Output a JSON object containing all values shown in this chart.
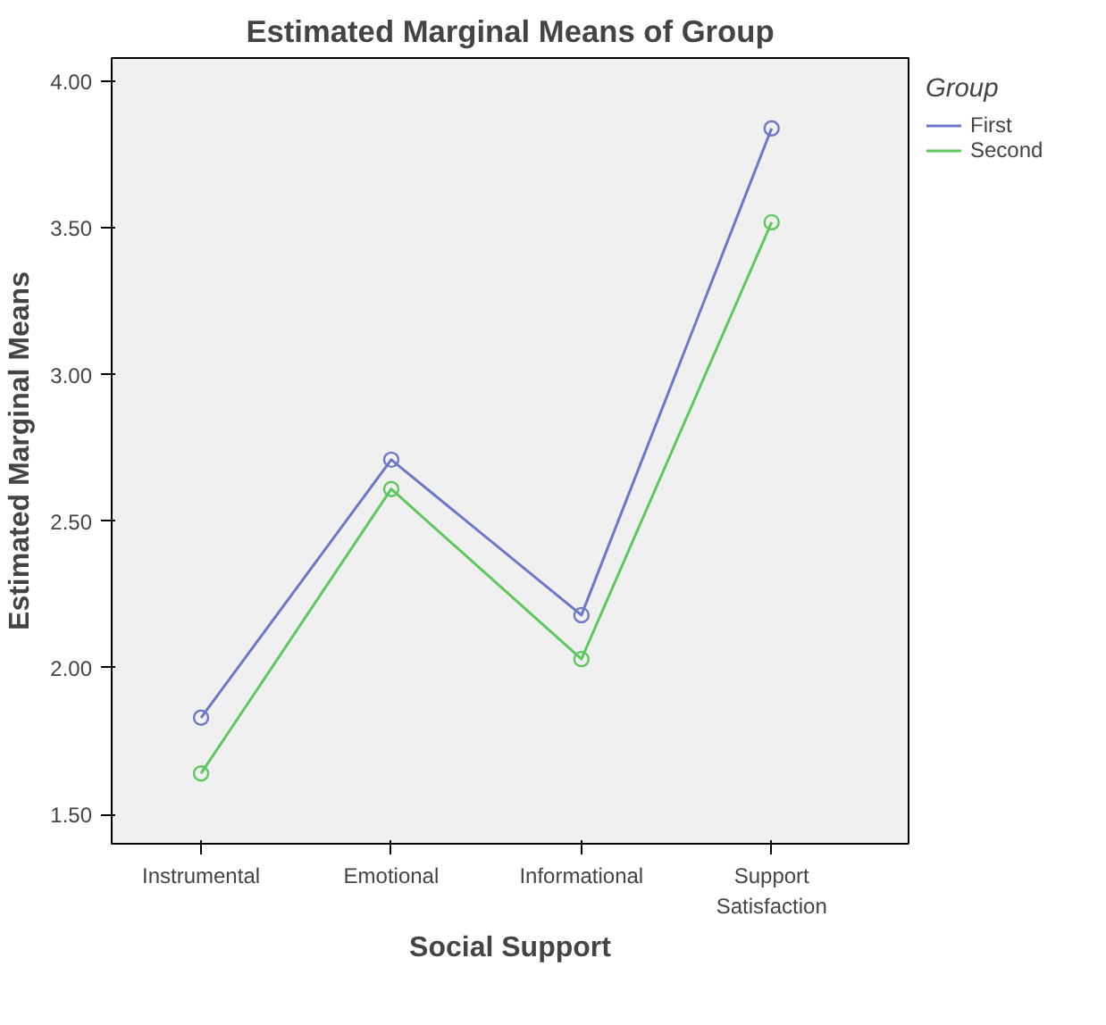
{
  "chart_data": {
    "type": "line",
    "title": "Estimated Marginal Means of Group",
    "xlabel": "Social Support",
    "ylabel": "Estimated Marginal Means",
    "legend_title": "Group",
    "categories": [
      "Instrumental",
      "Emotional",
      "Informational",
      "Support Satisfaction"
    ],
    "series": [
      {
        "name": "First",
        "color": "#6a78c6",
        "values": [
          1.83,
          2.71,
          2.18,
          3.84
        ]
      },
      {
        "name": "Second",
        "color": "#5ec85e",
        "values": [
          1.64,
          2.61,
          2.03,
          3.52
        ]
      }
    ],
    "ylim": [
      1.4,
      4.08
    ],
    "yticks": [
      {
        "value": 1.5,
        "label": "1.50"
      },
      {
        "value": 2.0,
        "label": "2.00"
      },
      {
        "value": 2.5,
        "label": "2.50"
      },
      {
        "value": 3.0,
        "label": "3.00"
      },
      {
        "value": 3.5,
        "label": "3.50"
      },
      {
        "value": 4.0,
        "label": "4.00"
      }
    ],
    "marker": "circle",
    "line_style": "solid",
    "legend": "right",
    "grid": false
  }
}
